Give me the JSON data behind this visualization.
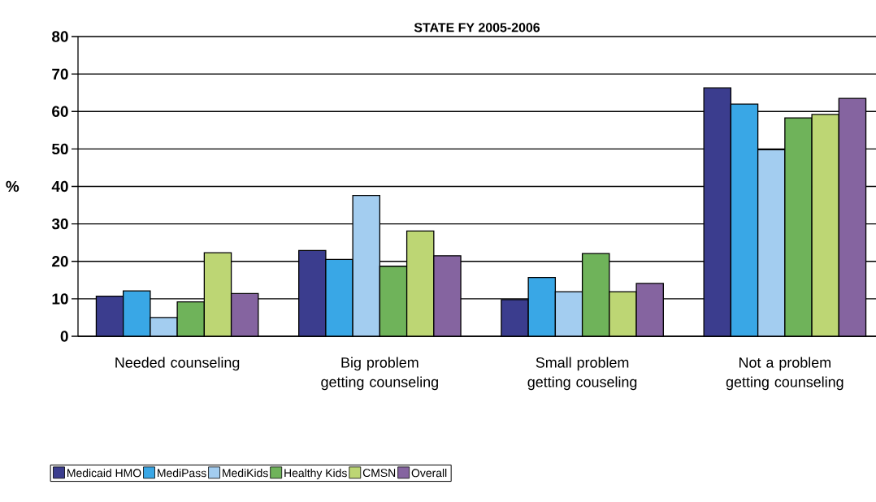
{
  "chart_data": {
    "type": "bar",
    "title": "STATE FY 2005-2006",
    "ylabel": "%",
    "categories": [
      "Needed counseling",
      "Big problem getting counseling",
      "Small problem getting couseling",
      "Not a problem getting counseling"
    ],
    "series": [
      {
        "name": "Medicaid HMO",
        "color": "#3b3d8e",
        "values": [
          10.7,
          22.9,
          9.8,
          66.3
        ]
      },
      {
        "name": "MediPass",
        "color": "#39a7e6",
        "values": [
          12.1,
          20.5,
          15.7,
          62.0
        ]
      },
      {
        "name": "MediKids",
        "color": "#a3cdf0",
        "values": [
          5.0,
          37.6,
          11.9,
          49.8
        ]
      },
      {
        "name": "Healthy Kids",
        "color": "#6fb35a",
        "values": [
          9.2,
          18.7,
          22.1,
          58.3
        ]
      },
      {
        "name": "CMSN",
        "color": "#bdd674",
        "values": [
          22.3,
          28.1,
          11.9,
          59.2
        ]
      },
      {
        "name": "Overall",
        "color": "#8564a0",
        "values": [
          11.4,
          21.5,
          14.1,
          63.5
        ]
      }
    ],
    "ylim": [
      0,
      80
    ],
    "yticks": [
      0,
      10,
      20,
      30,
      40,
      50,
      60,
      70,
      80
    ],
    "grid": "y",
    "legend": "bottom"
  }
}
